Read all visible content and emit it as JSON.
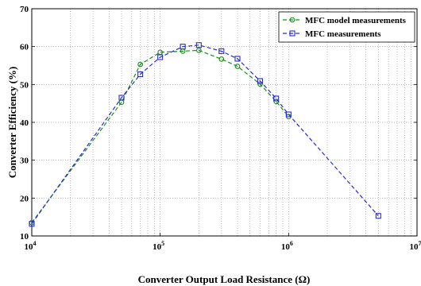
{
  "chart_data": {
    "type": "line",
    "x_scale": "log",
    "xlim": [
      10000,
      10000000
    ],
    "ylim": [
      10,
      70
    ],
    "xlabel": "Converter Output Load Resistance (Ω)",
    "ylabel": "Converter Efficiency (%)",
    "x_ticks": [
      {
        "value": 10000,
        "base": "10",
        "exp": "4"
      },
      {
        "value": 100000,
        "base": "10",
        "exp": "5"
      },
      {
        "value": 1000000,
        "base": "10",
        "exp": "6"
      },
      {
        "value": 10000000,
        "base": "10",
        "exp": "7"
      }
    ],
    "y_ticks": [
      10,
      20,
      30,
      40,
      50,
      60,
      70
    ],
    "grid": true,
    "legend_position": "top-right",
    "series": [
      {
        "name": "MFC model measurements",
        "color": "#1a8c1a",
        "marker": "circle",
        "x": [
          10000,
          50000,
          70000,
          100000,
          150000,
          200000,
          300000,
          400000,
          600000,
          800000,
          1000000
        ],
        "y": [
          13.5,
          45.3,
          55.3,
          58.5,
          58.8,
          59.0,
          56.7,
          54.8,
          50.1,
          45.5,
          41.5
        ]
      },
      {
        "name": "MFC measurements",
        "color": "#2a2ad0",
        "marker": "square",
        "x": [
          10000,
          50000,
          70000,
          100000,
          150000,
          200000,
          300000,
          400000,
          600000,
          800000,
          1000000,
          5000000
        ],
        "y": [
          13.2,
          46.5,
          52.7,
          57.2,
          60.0,
          60.4,
          58.8,
          56.8,
          50.9,
          46.3,
          42.1,
          15.3
        ]
      }
    ]
  }
}
